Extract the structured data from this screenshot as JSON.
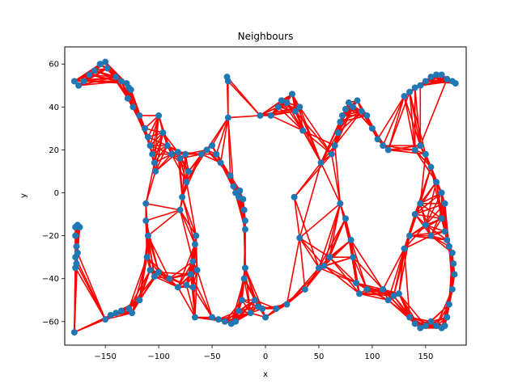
{
  "chart_data": {
    "type": "scatter",
    "title": "Neighbours",
    "xlabel": "x",
    "ylabel": "y",
    "xlim": [
      -188,
      188
    ],
    "ylim": [
      -71,
      68
    ],
    "xticks": [
      -150,
      -100,
      -50,
      0,
      50,
      100,
      150
    ],
    "yticks": [
      -60,
      -40,
      -20,
      0,
      20,
      40,
      60
    ],
    "xtick_labels": [
      "−150",
      "−100",
      "−50",
      "0",
      "50",
      "100",
      "150"
    ],
    "ytick_labels": [
      "−60",
      "−40",
      "−20",
      "0",
      "20",
      "40",
      "60"
    ],
    "grid": false,
    "colors": {
      "points": "#1f77b4",
      "edges": "#ff0000"
    },
    "points": [
      [
        -179,
        52
      ],
      [
        -175,
        50
      ],
      [
        -170,
        52
      ],
      [
        -165,
        55
      ],
      [
        -160,
        57
      ],
      [
        -155,
        60
      ],
      [
        -150,
        61
      ],
      [
        -148,
        58
      ],
      [
        -140,
        54
      ],
      [
        -135,
        52
      ],
      [
        -130,
        51
      ],
      [
        -128,
        49
      ],
      [
        -126,
        48
      ],
      [
        -129,
        44
      ],
      [
        -124,
        40
      ],
      [
        -118,
        36
      ],
      [
        -113,
        30
      ],
      [
        -110,
        26
      ],
      [
        -108,
        22
      ],
      [
        -106,
        18
      ],
      [
        -104,
        14
      ],
      [
        -103,
        10
      ],
      [
        -100,
        36
      ],
      [
        -96,
        28
      ],
      [
        -92,
        22
      ],
      [
        -88,
        18
      ],
      [
        -82,
        19
      ],
      [
        -80,
        16
      ],
      [
        -75,
        18
      ],
      [
        -112,
        -5
      ],
      [
        -112,
        -13
      ],
      [
        -110,
        -20
      ],
      [
        -111,
        -30
      ],
      [
        -108,
        -36
      ],
      [
        -104,
        -39
      ],
      [
        -100,
        -37
      ],
      [
        -90,
        -40
      ],
      [
        -82,
        -44
      ],
      [
        -74,
        -43
      ],
      [
        -70,
        -38
      ],
      [
        -68,
        -32
      ],
      [
        -66,
        -24
      ],
      [
        -65,
        -20
      ],
      [
        -64,
        -36
      ],
      [
        -68,
        -44
      ],
      [
        -80,
        -8
      ],
      [
        -78,
        -2
      ],
      [
        -74,
        5
      ],
      [
        -72,
        10
      ],
      [
        -60,
        18
      ],
      [
        -55,
        20
      ],
      [
        -50,
        22
      ],
      [
        -46,
        18
      ],
      [
        -42,
        14
      ],
      [
        -36,
        54
      ],
      [
        -35,
        52
      ],
      [
        -35,
        35
      ],
      [
        -33,
        8
      ],
      [
        -30,
        3
      ],
      [
        -28,
        0
      ],
      [
        -25,
        -2
      ],
      [
        -24,
        1
      ],
      [
        -21,
        -3
      ],
      [
        -20,
        -8
      ],
      [
        -19,
        -13
      ],
      [
        -19,
        -17
      ],
      [
        -19,
        -35
      ],
      [
        -20,
        -40
      ],
      [
        -22,
        -50
      ],
      [
        -25,
        -55
      ],
      [
        -28,
        -60
      ],
      [
        -32,
        -61
      ],
      [
        -38,
        -60
      ],
      [
        -44,
        -59
      ],
      [
        -50,
        -58
      ],
      [
        -66,
        -58
      ],
      [
        -14,
        -56
      ],
      [
        -10,
        -50
      ],
      [
        -7,
        -53
      ],
      [
        -3,
        -54
      ],
      [
        0,
        -58
      ],
      [
        10,
        -54
      ],
      [
        20,
        -52
      ],
      [
        -5,
        36
      ],
      [
        5,
        36
      ],
      [
        12,
        40
      ],
      [
        15,
        43
      ],
      [
        20,
        42
      ],
      [
        25,
        46
      ],
      [
        28,
        38
      ],
      [
        32,
        40
      ],
      [
        35,
        29
      ],
      [
        27,
        -2
      ],
      [
        32,
        -21
      ],
      [
        37,
        -45
      ],
      [
        50,
        -35
      ],
      [
        55,
        -34
      ],
      [
        60,
        -30
      ],
      [
        52,
        14
      ],
      [
        62,
        18
      ],
      [
        65,
        22
      ],
      [
        68,
        28
      ],
      [
        70,
        33
      ],
      [
        72,
        36
      ],
      [
        75,
        39
      ],
      [
        78,
        42
      ],
      [
        82,
        40
      ],
      [
        86,
        43
      ],
      [
        90,
        38
      ],
      [
        95,
        36
      ],
      [
        100,
        30
      ],
      [
        105,
        25
      ],
      [
        110,
        22
      ],
      [
        115,
        20
      ],
      [
        70,
        -5
      ],
      [
        75,
        -12
      ],
      [
        80,
        -22
      ],
      [
        82,
        -30
      ],
      [
        85,
        -42
      ],
      [
        88,
        -47
      ],
      [
        95,
        -45
      ],
      [
        110,
        -45
      ],
      [
        115,
        -50
      ],
      [
        120,
        -48
      ],
      [
        125,
        -47
      ],
      [
        130,
        -26
      ],
      [
        135,
        -20
      ],
      [
        140,
        -10
      ],
      [
        145,
        -5
      ],
      [
        150,
        -15
      ],
      [
        155,
        -20
      ],
      [
        130,
        45
      ],
      [
        135,
        47
      ],
      [
        140,
        49
      ],
      [
        145,
        50
      ],
      [
        150,
        52
      ],
      [
        155,
        54
      ],
      [
        160,
        55
      ],
      [
        165,
        55
      ],
      [
        170,
        53
      ],
      [
        175,
        52
      ],
      [
        178,
        51
      ],
      [
        140,
        20
      ],
      [
        145,
        22
      ],
      [
        150,
        18
      ],
      [
        155,
        12
      ],
      [
        160,
        5
      ],
      [
        165,
        0
      ],
      [
        168,
        -5
      ],
      [
        165,
        -12
      ],
      [
        168,
        -18
      ],
      [
        170,
        -22
      ],
      [
        172,
        -25
      ],
      [
        175,
        -28
      ],
      [
        176,
        -33
      ],
      [
        177,
        -38
      ],
      [
        175,
        -45
      ],
      [
        172,
        -52
      ],
      [
        170,
        -58
      ],
      [
        168,
        -62
      ],
      [
        165,
        -63
      ],
      [
        160,
        -62
      ],
      [
        155,
        -60
      ],
      [
        150,
        -62
      ],
      [
        145,
        -63
      ],
      [
        140,
        -61
      ],
      [
        135,
        -58
      ],
      [
        -178,
        -16
      ],
      [
        -176,
        -15
      ],
      [
        -174,
        -16
      ],
      [
        -178,
        -20
      ],
      [
        -177,
        -25
      ],
      [
        -176,
        -28
      ],
      [
        -178,
        -30
      ],
      [
        -177,
        -33
      ],
      [
        -178,
        -35
      ],
      [
        -179,
        -65
      ],
      [
        -150,
        -59
      ],
      [
        -145,
        -57
      ],
      [
        -140,
        -56
      ],
      [
        -135,
        -55
      ],
      [
        -128,
        -54
      ],
      [
        -125,
        -56
      ],
      [
        -118,
        -50
      ]
    ]
  }
}
